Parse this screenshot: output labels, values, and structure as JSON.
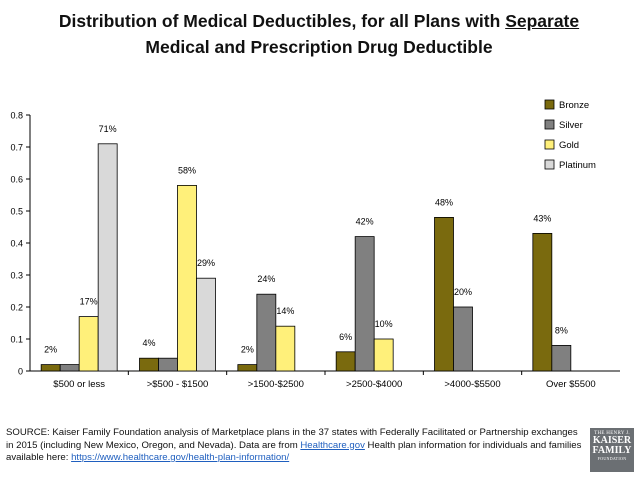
{
  "title": {
    "line1_prefix": "Distribution of Medical Deductibles, for all Plans with ",
    "line1_underlined": "Separate",
    "line2": "Medical and Prescription Drug Deductible"
  },
  "chart_data": {
    "type": "bar",
    "categories": [
      "$500 or less",
      ">$500 - $1500",
      ">1500-$2500",
      ">2500-$4000",
      ">4000-$5500",
      "Over $5500"
    ],
    "series": [
      {
        "name": "Bronze",
        "color": "#7a6a0e",
        "values": [
          0.02,
          0.04,
          0.02,
          0.06,
          0.48,
          0.43
        ],
        "labels": [
          "2%",
          "4%",
          "2%",
          "6%",
          "48%",
          "43%"
        ]
      },
      {
        "name": "Silver",
        "color": "#808080",
        "values": [
          0.02,
          0.04,
          0.24,
          0.42,
          0.2,
          0.08
        ],
        "labels": [
          "",
          "",
          "24%",
          "42%",
          "20%",
          "8%"
        ]
      },
      {
        "name": "Gold",
        "color": "#fff07a",
        "values": [
          0.17,
          0.58,
          0.14,
          0.1,
          0,
          0
        ],
        "labels": [
          "17%",
          "58%",
          "14%",
          "10%",
          "",
          ""
        ]
      },
      {
        "name": "Platinum",
        "color": "#d9d9d9",
        "values": [
          0.71,
          0.29,
          0,
          0,
          0,
          0
        ],
        "labels": [
          "71%",
          "29%",
          "",
          "",
          "",
          ""
        ]
      }
    ],
    "yticks": [
      "0",
      "0.1",
      "0.2",
      "0.3",
      "0.4",
      "0.5",
      "0.6",
      "0.7",
      "0.8"
    ],
    "ylim": [
      0,
      0.8
    ],
    "legend_position": "top-right",
    "grid": false
  },
  "footer": {
    "text1": "SOURCE: Kaiser Family Foundation analysis of Marketplace plans in the 37 states with Federally Facilitated or Partnership exchanges in 2015 (including New Mexico, Oregon, and Nevada). Data are from ",
    "link1": "Healthcare.gov",
    "text2": " Health plan information for individuals and families available here: ",
    "link2": "https://www.healthcare.gov/health-plan-information/"
  },
  "logo": {
    "line1": "THE HENRY J.",
    "line2": "KAISER",
    "line3": "FAMILY",
    "line4": "FOUNDATION"
  }
}
